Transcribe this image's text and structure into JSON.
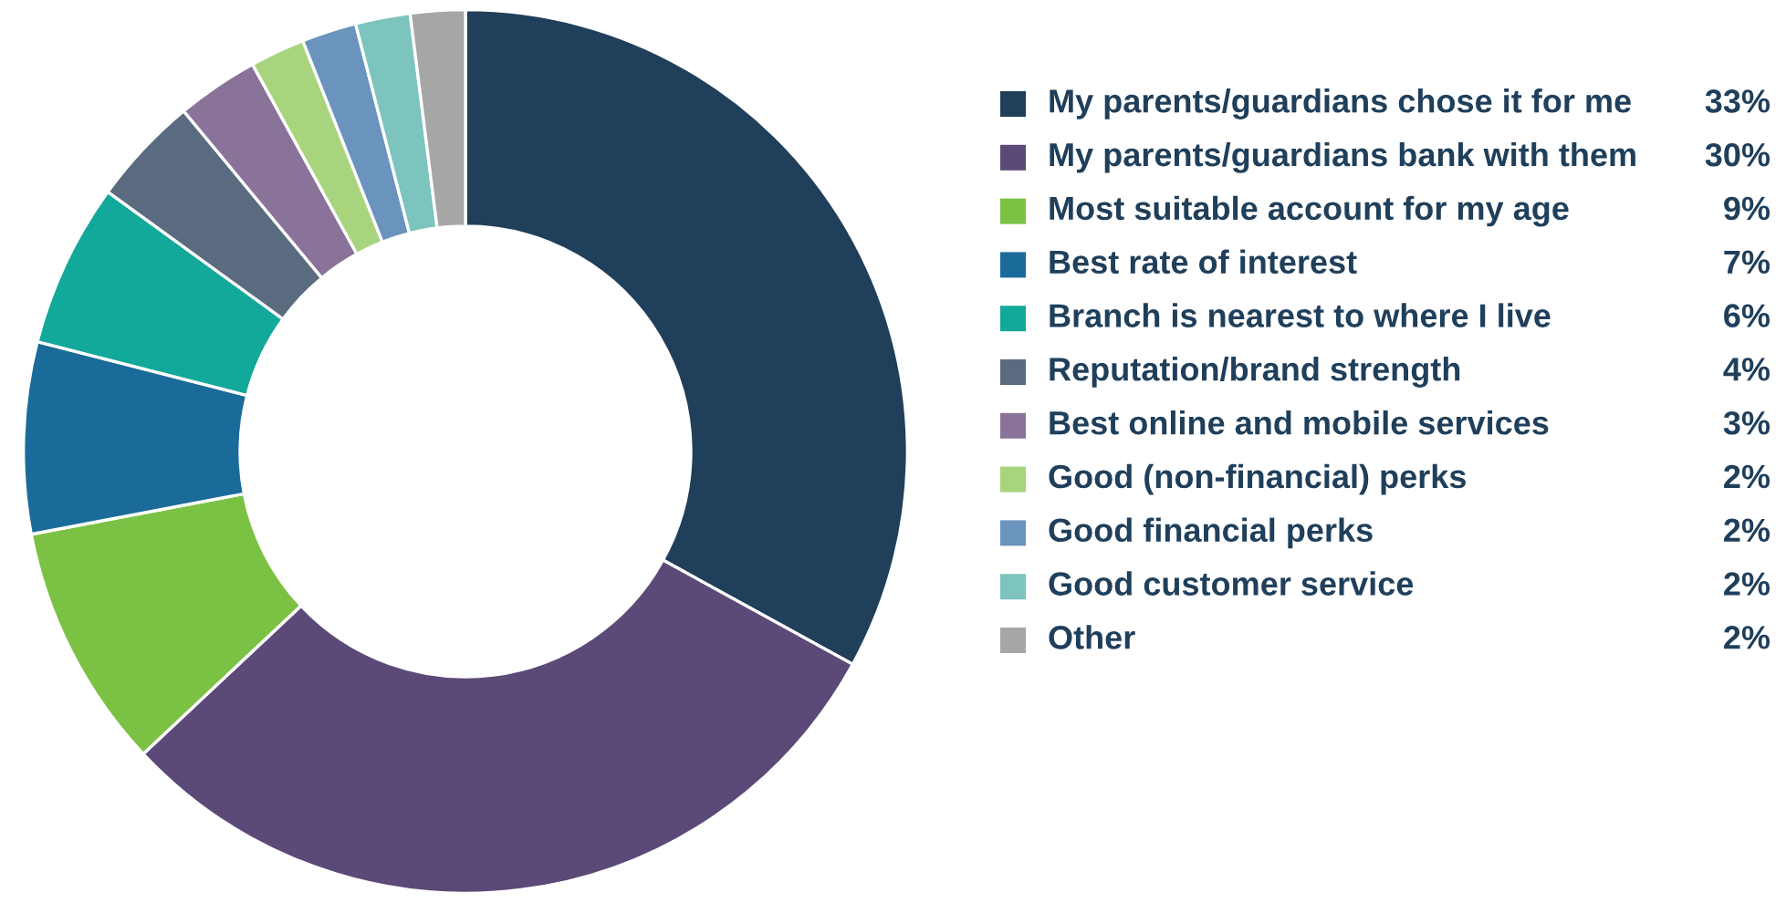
{
  "chart_data": {
    "type": "donut",
    "categories": [
      "My parents/guardians chose it for me",
      "My parents/guardians bank with them",
      "Most suitable account for my age",
      "Best rate of interest",
      "Branch is nearest to where I live",
      "Reputation/brand strength",
      "Best online and mobile services",
      "Good (non-financial) perks",
      "Good financial perks",
      "Good customer service",
      "Other"
    ],
    "values": [
      33,
      30,
      9,
      7,
      6,
      4,
      3,
      2,
      2,
      2,
      2
    ],
    "colors": [
      "#1f3f5b",
      "#5b4a78",
      "#7bc143",
      "#1b6b9a",
      "#12a89a",
      "#5a6b80",
      "#8a7399",
      "#a8d47e",
      "#6a93bd",
      "#7cc4bd",
      "#a6a6a6"
    ],
    "value_labels": [
      "33%",
      "30%",
      "9%",
      "7%",
      "6%",
      "4%",
      "3%",
      "2%",
      "2%",
      "2%",
      "2%"
    ],
    "legend": "right"
  }
}
